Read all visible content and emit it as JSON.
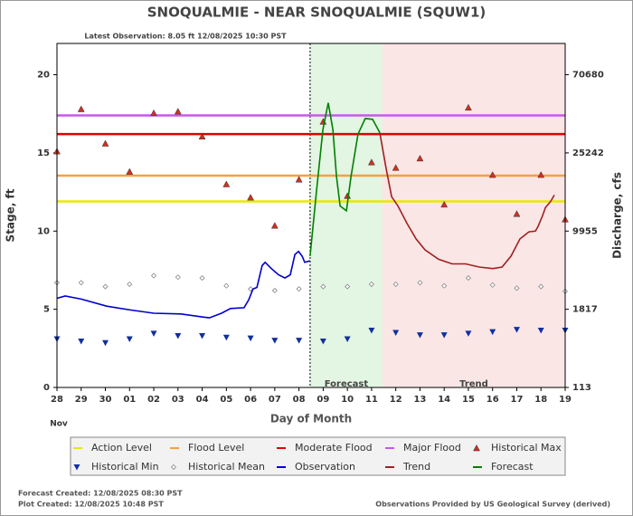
{
  "chart_data": {
    "type": "line",
    "title": "SNOQUALMIE - NEAR SNOQUALMIE  (SQUW1)",
    "subtitle": "Latest Observation: 8.05 ft 12/08/2025 10:30 PST",
    "ylabel": "Stage, ft",
    "y2label": "Discharge, cfs",
    "xlabel": "Day of Month",
    "month_label": "Nov",
    "xlim": [
      0,
      21
    ],
    "xticks": [
      {
        "value": 0,
        "label": "28"
      },
      {
        "value": 1,
        "label": "29"
      },
      {
        "value": 2,
        "label": "30"
      },
      {
        "value": 3,
        "label": "01"
      },
      {
        "value": 4,
        "label": "02"
      },
      {
        "value": 5,
        "label": "03"
      },
      {
        "value": 6,
        "label": "04"
      },
      {
        "value": 7,
        "label": "05"
      },
      {
        "value": 8,
        "label": "06"
      },
      {
        "value": 9,
        "label": "07"
      },
      {
        "value": 10,
        "label": "08"
      },
      {
        "value": 11,
        "label": "09"
      },
      {
        "value": 12,
        "label": "10"
      },
      {
        "value": 13,
        "label": "11"
      },
      {
        "value": 14,
        "label": "12"
      },
      {
        "value": 15,
        "label": "13"
      },
      {
        "value": 16,
        "label": "14"
      },
      {
        "value": 17,
        "label": "15"
      },
      {
        "value": 18,
        "label": "16"
      },
      {
        "value": 19,
        "label": "17"
      },
      {
        "value": 20,
        "label": "18"
      },
      {
        "value": 21,
        "label": "19"
      }
    ],
    "ylim": [
      0,
      22
    ],
    "yticks": [
      0,
      5,
      10,
      15,
      20
    ],
    "y2ticks": [
      113,
      1817,
      9955,
      25242,
      70680
    ],
    "y2_scale": "rating",
    "grid": false,
    "regions": [
      {
        "label": "Forecast",
        "xlim": [
          10.46,
          13.45
        ],
        "color": "#e3f5e3"
      },
      {
        "label": "Trend",
        "xlim": [
          13.45,
          21
        ],
        "color": "#fbe6e6"
      }
    ],
    "series": [
      {
        "name": "Action Level",
        "kind": "hline",
        "color": "#e8e800",
        "values": [
          11.9
        ]
      },
      {
        "name": "Flood Level",
        "kind": "hline",
        "color": "#f5a040",
        "values": [
          13.55
        ]
      },
      {
        "name": "Moderate Flood",
        "kind": "hline",
        "color": "#e00000",
        "values": [
          16.2
        ]
      },
      {
        "name": "Major Flood",
        "kind": "hline",
        "color": "#cc55ee",
        "values": [
          17.4
        ]
      },
      {
        "name": "Historical Max",
        "kind": "triangle-up",
        "color": "#d03020",
        "x": [
          0,
          1,
          2,
          3,
          4,
          5,
          6,
          7,
          8,
          9,
          10,
          11,
          12,
          13,
          14,
          15,
          16,
          17,
          18,
          19,
          20,
          21
        ],
        "values": [
          15.1,
          17.8,
          15.6,
          13.8,
          17.55,
          17.65,
          16.05,
          13.0,
          12.15,
          10.35,
          13.3,
          17.0,
          12.25,
          14.4,
          14.05,
          14.65,
          11.7,
          17.9,
          13.6,
          11.1,
          13.6,
          10.75
        ]
      },
      {
        "name": "Historical Min",
        "kind": "triangle-down",
        "color": "#1030a0",
        "x": [
          0,
          1,
          2,
          3,
          4,
          5,
          6,
          7,
          8,
          9,
          10,
          11,
          12,
          13,
          14,
          15,
          16,
          17,
          18,
          19,
          20,
          21
        ],
        "values": [
          3.1,
          2.95,
          2.85,
          3.1,
          3.45,
          3.3,
          3.3,
          3.2,
          3.15,
          3.0,
          3.0,
          2.95,
          3.1,
          3.65,
          3.5,
          3.35,
          3.35,
          3.45,
          3.55,
          3.7,
          3.65,
          3.65
        ]
      },
      {
        "name": "Historical Mean",
        "kind": "diamond",
        "color": "#888888",
        "x": [
          0,
          1,
          2,
          3,
          4,
          5,
          6,
          7,
          8,
          9,
          10,
          11,
          12,
          13,
          14,
          15,
          16,
          17,
          18,
          19,
          20,
          21
        ],
        "values": [
          6.7,
          6.7,
          6.45,
          6.6,
          7.15,
          7.05,
          7.0,
          6.5,
          6.3,
          6.2,
          6.3,
          6.45,
          6.45,
          6.6,
          6.6,
          6.7,
          6.5,
          7.0,
          6.55,
          6.35,
          6.45,
          6.15
        ]
      },
      {
        "name": "Observation",
        "kind": "line",
        "color": "#0000cc",
        "x": [
          0,
          0.34,
          1.0,
          2.05,
          3.06,
          4.0,
          5.12,
          6.06,
          6.3,
          6.8,
          7.17,
          7.73,
          7.92,
          8.1,
          8.26,
          8.48,
          8.6,
          8.86,
          9.16,
          9.42,
          9.64,
          9.83,
          9.98,
          10.13,
          10.24,
          10.46
        ],
        "values": [
          5.7,
          5.85,
          5.65,
          5.2,
          4.95,
          4.75,
          4.7,
          4.5,
          4.45,
          4.75,
          5.05,
          5.1,
          5.6,
          6.3,
          6.4,
          7.8,
          8.0,
          7.6,
          7.2,
          7.0,
          7.2,
          8.5,
          8.7,
          8.4,
          8.0,
          8.1
        ]
      },
      {
        "name": "Trend",
        "kind": "line",
        "color": "#a02020",
        "x": [
          13.34,
          13.6,
          13.83,
          14.09,
          14.46,
          14.84,
          15.21,
          15.77,
          16.33,
          16.89,
          17.45,
          18.01,
          18.39,
          18.76,
          19.13,
          19.5,
          19.77,
          19.88,
          20.07,
          20.18,
          20.4,
          20.55
        ],
        "values": [
          16.3,
          14.0,
          12.2,
          11.6,
          10.5,
          9.5,
          8.8,
          8.2,
          7.9,
          7.9,
          7.7,
          7.6,
          7.7,
          8.4,
          9.5,
          9.95,
          10.0,
          10.3,
          11.0,
          11.5,
          11.9,
          12.3
        ]
      },
      {
        "name": "Forecast",
        "kind": "line",
        "color": "#008000",
        "x": [
          10.46,
          10.72,
          10.99,
          11.21,
          11.4,
          11.55,
          11.7,
          11.96,
          12.15,
          12.44,
          12.74,
          13.04,
          13.34
        ],
        "values": [
          8.4,
          12.5,
          16.5,
          18.2,
          16.5,
          13.5,
          11.6,
          11.3,
          13.5,
          16.2,
          17.2,
          17.15,
          16.3
        ]
      }
    ],
    "footer_left": [
      "Forecast Created: 12/08/2025 08:30 PST",
      "Plot Created: 12/08/2025 10:48 PST"
    ],
    "footer_right": "Observations Provided by US Geological Survey (derived)"
  }
}
